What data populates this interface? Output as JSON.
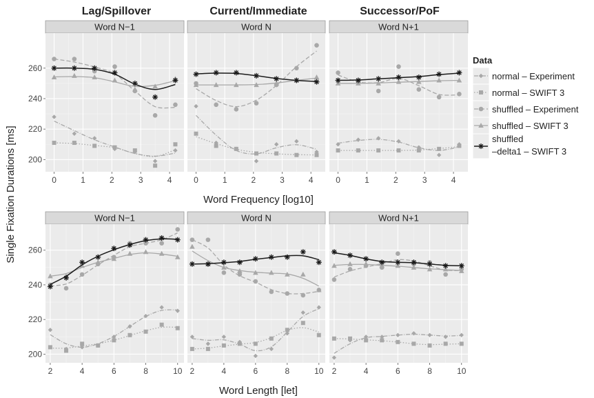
{
  "colors": {
    "panel_bg": "#ebebeb",
    "strip_bg": "#d9d9d9",
    "grid": "#ffffff",
    "gray_series": "#a8a8a8",
    "black_series": "#1a1a1a",
    "text": "#222222"
  },
  "column_titles": [
    "Lag/Spillover",
    "Current/Immediate",
    "Successor/PoF"
  ],
  "y_axis_label": "Single Fixation Durations [ms]",
  "legend": {
    "title": "Data",
    "entries": [
      {
        "label": "normal – Experiment",
        "style": "diamond-dashdot"
      },
      {
        "label": "normal – SWIFT 3",
        "style": "square-dotted"
      },
      {
        "label": "shuffled – Experiment",
        "style": "circle-dashed"
      },
      {
        "label": "shuffled – SWIFT 3",
        "style": "triangle-solid-gray"
      },
      {
        "label": "shuffled",
        "label2": "–delta1 – SWIFT 3",
        "style": "star-solid-black"
      }
    ]
  },
  "chart_data": [
    {
      "type": "line",
      "row": "frequency",
      "xlabel": "Word Frequency [log10]",
      "xticks": [
        0,
        1,
        2,
        3,
        4
      ],
      "xlim": [
        -0.3,
        4.5
      ],
      "ylim": [
        192,
        283
      ],
      "yticks": [
        200,
        220,
        240,
        260
      ],
      "grid": true,
      "panels": [
        {
          "strip": "Word N−1",
          "series": [
            {
              "name": "normal – Experiment",
              "x": [
                0.0,
                0.7,
                1.4,
                2.1,
                2.8,
                3.5,
                4.2
              ],
              "y": [
                228,
                217,
                214,
                207,
                205,
                199,
                206
              ]
            },
            {
              "name": "normal – SWIFT 3",
              "x": [
                0.0,
                0.7,
                1.4,
                2.1,
                2.8,
                3.5,
                4.2
              ],
              "y": [
                211,
                211,
                209,
                208,
                206,
                196,
                210
              ]
            },
            {
              "name": "shuffled – Experiment",
              "x": [
                0.0,
                0.7,
                1.4,
                2.1,
                2.8,
                3.5,
                4.2
              ],
              "y": [
                266,
                266,
                258,
                261,
                245,
                229,
                236
              ]
            },
            {
              "name": "shuffled – SWIFT 3",
              "x": [
                0.0,
                0.7,
                1.4,
                2.1,
                2.8,
                3.5,
                4.2
              ],
              "y": [
                254,
                255,
                254,
                252,
                246,
                248,
                253
              ]
            },
            {
              "name": "shuffled –delta1 – SWIFT 3",
              "x": [
                0.0,
                0.7,
                1.4,
                2.1,
                2.8,
                3.5,
                4.2
              ],
              "y": [
                260,
                260,
                260,
                257,
                250,
                241,
                252
              ]
            }
          ]
        },
        {
          "strip": "Word N",
          "series": [
            {
              "name": "normal – Experiment",
              "x": [
                0.0,
                0.7,
                1.4,
                2.1,
                2.8,
                3.5,
                4.2
              ],
              "y": [
                235,
                211,
                207,
                199,
                210,
                212,
                205
              ]
            },
            {
              "name": "normal – SWIFT 3",
              "x": [
                0.0,
                0.7,
                1.4,
                2.1,
                2.8,
                3.5,
                4.2
              ],
              "y": [
                217,
                209,
                207,
                204,
                204,
                203,
                203
              ]
            },
            {
              "name": "shuffled – Experiment",
              "x": [
                0.0,
                0.7,
                1.4,
                2.1,
                2.8,
                3.5,
                4.2
              ],
              "y": [
                250,
                236,
                233,
                237,
                249,
                260,
                275
              ]
            },
            {
              "name": "shuffled – SWIFT 3",
              "x": [
                0.0,
                0.7,
                1.4,
                2.1,
                2.8,
                3.5,
                4.2
              ],
              "y": [
                249,
                249,
                249,
                249,
                250,
                252,
                254
              ]
            },
            {
              "name": "shuffled –delta1 – SWIFT 3",
              "x": [
                0.0,
                0.7,
                1.4,
                2.1,
                2.8,
                3.5,
                4.2
              ],
              "y": [
                256,
                257,
                257,
                255,
                253,
                252,
                251
              ]
            }
          ]
        },
        {
          "strip": "Word N+1",
          "series": [
            {
              "name": "normal – Experiment",
              "x": [
                0.0,
                0.7,
                1.4,
                2.1,
                2.8,
                3.5,
                4.2
              ],
              "y": [
                210,
                213,
                214,
                212,
                208,
                203,
                210
              ]
            },
            {
              "name": "normal – SWIFT 3",
              "x": [
                0.0,
                0.7,
                1.4,
                2.1,
                2.8,
                3.5,
                4.2
              ],
              "y": [
                206,
                206,
                206,
                206,
                206,
                207,
                209
              ]
            },
            {
              "name": "shuffled – Experiment",
              "x": [
                0.0,
                0.7,
                1.4,
                2.1,
                2.8,
                3.5,
                4.2
              ],
              "y": [
                257,
                251,
                245,
                261,
                246,
                241,
                243
              ]
            },
            {
              "name": "shuffled – SWIFT 3",
              "x": [
                0.0,
                0.7,
                1.4,
                2.1,
                2.8,
                3.5,
                4.2
              ],
              "y": [
                250,
                250,
                250,
                251,
                251,
                252,
                252
              ]
            },
            {
              "name": "shuffled –delta1 – SWIFT 3",
              "x": [
                0.0,
                0.7,
                1.4,
                2.1,
                2.8,
                3.5,
                4.2
              ],
              "y": [
                252,
                252,
                253,
                254,
                254,
                256,
                257
              ]
            }
          ]
        }
      ]
    },
    {
      "type": "line",
      "row": "length",
      "xlabel": "Word Length [let]",
      "xticks": [
        2,
        4,
        6,
        8,
        10
      ],
      "xlim": [
        1.7,
        10.4
      ],
      "ylim": [
        195,
        275
      ],
      "yticks": [
        200,
        220,
        240,
        260
      ],
      "grid": true,
      "panels": [
        {
          "strip": "Word N−1",
          "series": [
            {
              "name": "normal – Experiment",
              "x": [
                2,
                3,
                4,
                5,
                6,
                7,
                8,
                9,
                10
              ],
              "y": [
                214,
                203,
                204,
                205,
                210,
                216,
                222,
                227,
                225
              ]
            },
            {
              "name": "normal – SWIFT 3",
              "x": [
                2,
                3,
                4,
                5,
                6,
                7,
                8,
                9,
                10
              ],
              "y": [
                204,
                202,
                206,
                205,
                208,
                211,
                213,
                217,
                215
              ]
            },
            {
              "name": "shuffled – Experiment",
              "x": [
                2,
                3,
                4,
                5,
                6,
                7,
                8,
                9,
                10
              ],
              "y": [
                240,
                238,
                246,
                252,
                256,
                264,
                264,
                264,
                272
              ]
            },
            {
              "name": "shuffled – SWIFT 3",
              "x": [
                2,
                3,
                4,
                5,
                6,
                7,
                8,
                9,
                10
              ],
              "y": [
                245,
                245,
                251,
                253,
                255,
                258,
                259,
                258,
                256
              ]
            },
            {
              "name": "shuffled –delta1 – SWIFT 3",
              "x": [
                2,
                3,
                4,
                5,
                6,
                7,
                8,
                9,
                10
              ],
              "y": [
                239,
                244,
                253,
                256,
                261,
                263,
                266,
                267,
                266
              ]
            }
          ]
        },
        {
          "strip": "Word N",
          "series": [
            {
              "name": "normal – Experiment",
              "x": [
                2,
                3,
                4,
                5,
                6,
                7,
                8,
                9,
                10
              ],
              "y": [
                210,
                206,
                210,
                207,
                199,
                203,
                212,
                224,
                227
              ]
            },
            {
              "name": "normal – SWIFT 3",
              "x": [
                2,
                3,
                4,
                5,
                6,
                7,
                8,
                9,
                10
              ],
              "y": [
                203,
                203,
                205,
                206,
                206,
                209,
                214,
                218,
                211
              ]
            },
            {
              "name": "shuffled – Experiment",
              "x": [
                2,
                3,
                4,
                5,
                6,
                7,
                8,
                9,
                10
              ],
              "y": [
                266,
                266,
                247,
                246,
                242,
                236,
                235,
                234,
                237
              ]
            },
            {
              "name": "shuffled – SWIFT 3",
              "x": [
                2,
                3,
                4,
                5,
                6,
                7,
                8,
                9,
                10
              ],
              "y": [
                262,
                252,
                250,
                248,
                247,
                247,
                246,
                246,
                237
              ]
            },
            {
              "name": "shuffled –delta1 – SWIFT 3",
              "x": [
                2,
                3,
                4,
                5,
                6,
                7,
                8,
                9,
                10
              ],
              "y": [
                252,
                252,
                253,
                253,
                255,
                256,
                256,
                259,
                253
              ]
            }
          ]
        },
        {
          "strip": "Word N+1",
          "series": [
            {
              "name": "normal – Experiment",
              "x": [
                2,
                3,
                4,
                5,
                6,
                7,
                8,
                9,
                10
              ],
              "y": [
                198,
                208,
                210,
                210,
                211,
                212,
                211,
                210,
                211
              ]
            },
            {
              "name": "normal – SWIFT 3",
              "x": [
                2,
                3,
                4,
                5,
                6,
                7,
                8,
                9,
                10
              ],
              "y": [
                209,
                209,
                208,
                208,
                207,
                206,
                205,
                206,
                206
              ]
            },
            {
              "name": "shuffled – Experiment",
              "x": [
                2,
                3,
                4,
                5,
                6,
                7,
                8,
                9,
                10
              ],
              "y": [
                243,
                249,
                251,
                250,
                258,
                252,
                253,
                246,
                249
              ]
            },
            {
              "name": "shuffled – SWIFT 3",
              "x": [
                2,
                3,
                4,
                5,
                6,
                7,
                8,
                9,
                10
              ],
              "y": [
                251,
                252,
                252,
                251,
                251,
                250,
                249,
                249,
                248
              ]
            },
            {
              "name": "shuffled –delta1 – SWIFT 3",
              "x": [
                2,
                3,
                4,
                5,
                6,
                7,
                8,
                9,
                10
              ],
              "y": [
                259,
                257,
                255,
                253,
                253,
                253,
                252,
                251,
                251
              ]
            }
          ]
        }
      ]
    }
  ]
}
